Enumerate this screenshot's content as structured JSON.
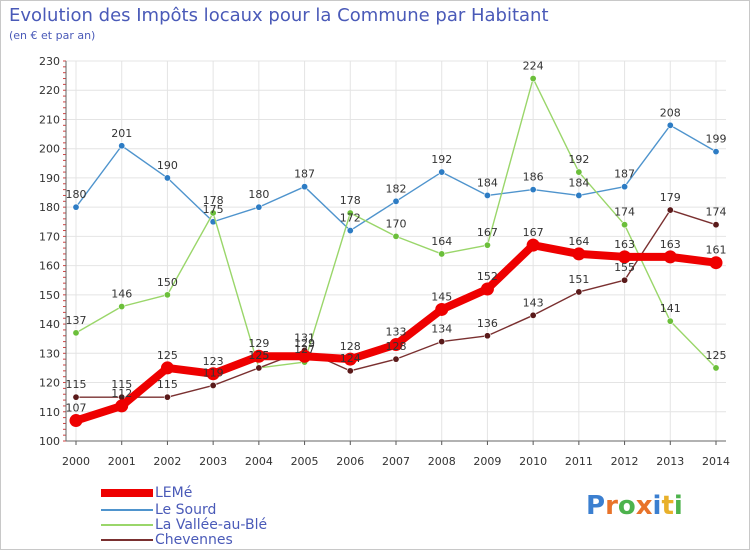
{
  "header": {
    "title": "Evolution des Impôts locaux pour la Commune par Habitant",
    "subtitle": "(en € et par an)"
  },
  "logo": {
    "text": "Proxiti",
    "colors": [
      "#3b7fd0",
      "#e8732a",
      "#4db34d",
      "#e8732a",
      "#3b7fd0",
      "#e8b02a",
      "#4db34d"
    ]
  },
  "chart_data": {
    "type": "line",
    "title": "Evolution des Impôts locaux pour la Commune par Habitant",
    "subtitle": "(en € et par an)",
    "xlabel": "",
    "ylabel": "",
    "ylim": [
      100,
      230
    ],
    "yticks": [
      100,
      110,
      120,
      130,
      140,
      150,
      160,
      170,
      180,
      190,
      200,
      210,
      220,
      230
    ],
    "grid": true,
    "legend_position": "bottom-left",
    "categories": [
      "2000",
      "2001",
      "2002",
      "2003",
      "2004",
      "2005",
      "2006",
      "2007",
      "2008",
      "2009",
      "2010",
      "2011",
      "2012",
      "2013",
      "2014"
    ],
    "series": [
      {
        "name": "Le Sourd",
        "color": "#4f94cd",
        "marker": "#2d7cc4",
        "values": [
          180,
          201,
          190,
          175,
          180,
          187,
          172,
          182,
          192,
          184,
          186,
          184,
          187,
          208,
          199
        ],
        "labels": [
          "180",
          "201",
          "190",
          "175",
          "180",
          "187",
          "172",
          "182",
          "192",
          "184",
          "186",
          "184",
          "187",
          "208",
          "199"
        ]
      },
      {
        "name": "La Vallée-au-Blé",
        "color": "#9ad66a",
        "marker": "#6bbf3a",
        "values": [
          137,
          146,
          150,
          178,
          125,
          127,
          178,
          170,
          164,
          167,
          224,
          192,
          174,
          141,
          125
        ],
        "labels": [
          "137",
          "146",
          "150",
          "178",
          "125",
          "127",
          "178",
          "170",
          "164",
          "167",
          "224",
          "192",
          "174",
          "141",
          "125"
        ]
      },
      {
        "name": "Chevennes",
        "color": "#7a3030",
        "marker": "#5a1a1a",
        "values": [
          115,
          115,
          115,
          119,
          125,
          131,
          124,
          128,
          134,
          136,
          143,
          151,
          155,
          179,
          174
        ],
        "labels": [
          "115",
          "115",
          "115",
          "119",
          "125",
          "131",
          "124",
          "128",
          "134",
          "136",
          "143",
          "151",
          "155",
          "179",
          "174"
        ]
      },
      {
        "name": "LEMé",
        "color": "#ee0000",
        "marker": "#ee0000",
        "values": [
          107,
          112,
          125,
          123,
          129,
          129,
          128,
          133,
          145,
          152,
          167,
          164,
          163,
          163,
          161
        ],
        "labels": [
          "107",
          "112",
          "125",
          "123",
          "129",
          "129",
          "128",
          "133",
          "145",
          "152",
          "167",
          "164",
          "163",
          "163",
          "161"
        ]
      }
    ],
    "legend": [
      "LEMé",
      "Le Sourd",
      "La Vallée-au-Blé",
      "Chevennes"
    ]
  }
}
